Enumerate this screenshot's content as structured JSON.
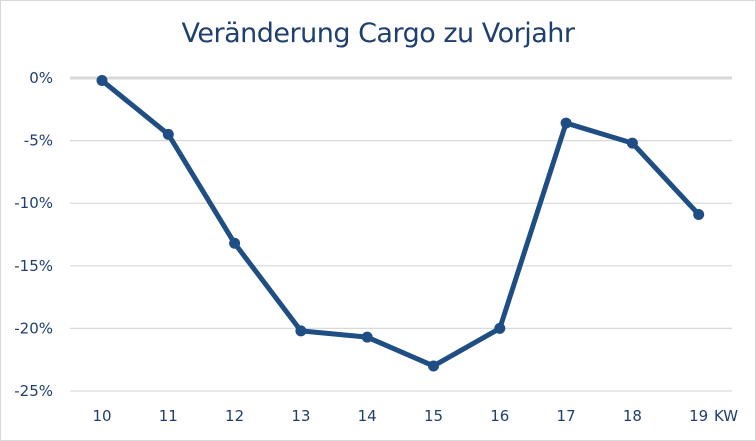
{
  "chart_data": {
    "type": "line",
    "title": "Veränderung Cargo zu Vorjahr",
    "xlabel": "KW",
    "ylabel": "",
    "categories": [
      "10",
      "11",
      "12",
      "13",
      "14",
      "15",
      "16",
      "17",
      "18",
      "19"
    ],
    "series": [
      {
        "name": "Veränderung Cargo zu Vorjahr",
        "values": [
          -0.2,
          -4.5,
          -13.2,
          -20.2,
          -20.7,
          -23.0,
          -20.0,
          -3.6,
          -5.2,
          -10.9
        ],
        "color": "#1f4e84"
      }
    ],
    "y_ticks": [
      "0%",
      "-5%",
      "-10%",
      "-15%",
      "-20%",
      "-25%"
    ],
    "y_tick_values": [
      0,
      -5,
      -10,
      -15,
      -20,
      -25
    ],
    "ylim": [
      -25,
      0
    ],
    "grid": true,
    "legend": "none",
    "units": "%"
  },
  "colors": {
    "line": "#1f4e84",
    "text": "#1f3f6e",
    "grid": "#d9d9d9"
  }
}
